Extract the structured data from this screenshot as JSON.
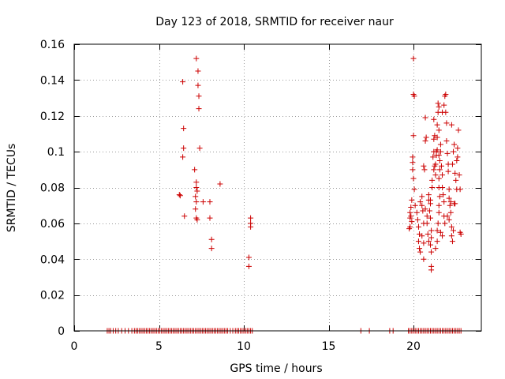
{
  "chart_data": {
    "type": "scatter",
    "title": "Day 123 of 2018, SRMTID for receiver naur",
    "xlabel": "GPS time / hours",
    "ylabel": "SRMTID / TECUs",
    "xlim": [
      0,
      24
    ],
    "ylim": [
      0,
      0.16
    ],
    "xticks": [
      0,
      5,
      10,
      15,
      20
    ],
    "xtick_labels": [
      "0",
      "5",
      "10",
      "15",
      "20"
    ],
    "yticks": [
      0,
      0.02,
      0.04,
      0.06,
      0.08,
      0.1,
      0.12,
      0.14,
      0.16
    ],
    "ytick_labels": [
      "0",
      "0.02",
      "0.04",
      "0.06",
      "0.08",
      "0.1",
      "0.12",
      "0.14",
      "0.16"
    ],
    "grid": true,
    "legend": "none",
    "marker": "plus",
    "color": "#cc0000",
    "series": [
      {
        "name": "SRMTID",
        "points": [
          [
            6.2,
            0.076
          ],
          [
            6.25,
            0.0755
          ],
          [
            6.4,
            0.139
          ],
          [
            6.45,
            0.113
          ],
          [
            6.45,
            0.102
          ],
          [
            6.4,
            0.097
          ],
          [
            6.5,
            0.064
          ],
          [
            7.2,
            0.152
          ],
          [
            7.3,
            0.145
          ],
          [
            7.3,
            0.137
          ],
          [
            7.35,
            0.131
          ],
          [
            7.35,
            0.124
          ],
          [
            7.4,
            0.102
          ],
          [
            7.1,
            0.09
          ],
          [
            7.2,
            0.083
          ],
          [
            7.2,
            0.08
          ],
          [
            7.25,
            0.078
          ],
          [
            7.15,
            0.075
          ],
          [
            7.2,
            0.072
          ],
          [
            7.15,
            0.068
          ],
          [
            7.2,
            0.063
          ],
          [
            7.25,
            0.062
          ],
          [
            7.6,
            0.072
          ],
          [
            8.0,
            0.072
          ],
          [
            8.0,
            0.063
          ],
          [
            8.1,
            0.051
          ],
          [
            8.1,
            0.046
          ],
          [
            8.6,
            0.082
          ],
          [
            10.3,
            0.041
          ],
          [
            10.3,
            0.036
          ],
          [
            10.4,
            0.063
          ],
          [
            10.4,
            0.06
          ],
          [
            10.4,
            0.058
          ],
          [
            20.0,
            0.152
          ],
          [
            20.0,
            0.132
          ],
          [
            20.05,
            0.131
          ],
          [
            20.0,
            0.109
          ],
          [
            19.95,
            0.097
          ],
          [
            19.95,
            0.094
          ],
          [
            19.95,
            0.09
          ],
          [
            20.0,
            0.085
          ],
          [
            20.05,
            0.079
          ],
          [
            19.9,
            0.073
          ],
          [
            19.85,
            0.069
          ],
          [
            19.8,
            0.066
          ],
          [
            19.85,
            0.064
          ],
          [
            19.8,
            0.063
          ],
          [
            19.9,
            0.061
          ],
          [
            19.8,
            0.058
          ],
          [
            19.75,
            0.057
          ],
          [
            20.1,
            0.07
          ],
          [
            20.2,
            0.066
          ],
          [
            20.25,
            0.062
          ],
          [
            20.3,
            0.058
          ],
          [
            20.35,
            0.054
          ],
          [
            20.3,
            0.05
          ],
          [
            20.35,
            0.046
          ],
          [
            20.4,
            0.044
          ],
          [
            20.4,
            0.072
          ],
          [
            20.5,
            0.07
          ],
          [
            20.5,
            0.075
          ],
          [
            20.55,
            0.067
          ],
          [
            20.6,
            0.06
          ],
          [
            20.5,
            0.053
          ],
          [
            20.6,
            0.049
          ],
          [
            20.6,
            0.04
          ],
          [
            20.7,
            0.119
          ],
          [
            20.7,
            0.106
          ],
          [
            20.75,
            0.108
          ],
          [
            20.6,
            0.092
          ],
          [
            20.65,
            0.09
          ],
          [
            20.7,
            0.068
          ],
          [
            20.8,
            0.064
          ],
          [
            20.8,
            0.06
          ],
          [
            20.85,
            0.054
          ],
          [
            20.9,
            0.05
          ],
          [
            20.9,
            0.073
          ],
          [
            20.95,
            0.067
          ],
          [
            21.0,
            0.073
          ],
          [
            21.0,
            0.063
          ],
          [
            21.05,
            0.056
          ],
          [
            21.05,
            0.052
          ],
          [
            21.0,
            0.048
          ],
          [
            21.05,
            0.044
          ],
          [
            21.05,
            0.036
          ],
          [
            21.05,
            0.034
          ],
          [
            21.1,
            0.084
          ],
          [
            21.1,
            0.08
          ],
          [
            21.15,
            0.097
          ],
          [
            21.2,
            0.1
          ],
          [
            21.2,
            0.107
          ],
          [
            21.25,
            0.109
          ],
          [
            21.2,
            0.118
          ],
          [
            21.2,
            0.09
          ],
          [
            21.25,
            0.092
          ],
          [
            21.3,
            0.087
          ],
          [
            21.3,
            0.093
          ],
          [
            21.35,
            0.098
          ],
          [
            21.35,
            0.1
          ],
          [
            21.4,
            0.101
          ],
          [
            21.4,
            0.108
          ],
          [
            21.4,
            0.115
          ],
          [
            21.45,
            0.122
          ],
          [
            21.45,
            0.127
          ],
          [
            21.5,
            0.125
          ],
          [
            21.5,
            0.112
          ],
          [
            21.5,
            0.098
          ],
          [
            21.55,
            0.095
          ],
          [
            21.55,
            0.09
          ],
          [
            21.5,
            0.085
          ],
          [
            21.5,
            0.08
          ],
          [
            21.55,
            0.075
          ],
          [
            21.5,
            0.07
          ],
          [
            21.5,
            0.066
          ],
          [
            21.45,
            0.06
          ],
          [
            21.4,
            0.056
          ],
          [
            21.4,
            0.05
          ],
          [
            21.3,
            0.046
          ],
          [
            21.6,
            0.104
          ],
          [
            21.6,
            0.1
          ],
          [
            21.65,
            0.092
          ],
          [
            21.7,
            0.087
          ],
          [
            21.7,
            0.08
          ],
          [
            21.75,
            0.076
          ],
          [
            21.8,
            0.072
          ],
          [
            21.8,
            0.064
          ],
          [
            21.85,
            0.06
          ],
          [
            21.7,
            0.122
          ],
          [
            21.8,
            0.126
          ],
          [
            21.85,
            0.131
          ],
          [
            21.9,
            0.132
          ],
          [
            21.9,
            0.122
          ],
          [
            21.95,
            0.116
          ],
          [
            21.95,
            0.106
          ],
          [
            22.0,
            0.099
          ],
          [
            22.05,
            0.093
          ],
          [
            22.05,
            0.089
          ],
          [
            22.1,
            0.079
          ],
          [
            22.1,
            0.074
          ],
          [
            22.15,
            0.07
          ],
          [
            22.2,
            0.072
          ],
          [
            22.2,
            0.066
          ],
          [
            22.25,
            0.058
          ],
          [
            22.25,
            0.053
          ],
          [
            22.3,
            0.05
          ],
          [
            22.35,
            0.056
          ],
          [
            22.35,
            0.1
          ],
          [
            22.4,
            0.104
          ],
          [
            22.4,
            0.071
          ],
          [
            22.45,
            0.071
          ],
          [
            22.45,
            0.088
          ],
          [
            22.5,
            0.084
          ],
          [
            22.55,
            0.079
          ],
          [
            22.55,
            0.095
          ],
          [
            22.6,
            0.097
          ],
          [
            22.6,
            0.102
          ],
          [
            22.65,
            0.112
          ],
          [
            22.7,
            0.087
          ],
          [
            22.75,
            0.079
          ],
          [
            22.75,
            0.055
          ],
          [
            22.8,
            0.054
          ],
          [
            22.25,
            0.115
          ],
          [
            22.3,
            0.093
          ],
          [
            21.0,
            0.071
          ],
          [
            20.9,
            0.076
          ],
          [
            21.6,
            0.055
          ],
          [
            21.7,
            0.053
          ],
          [
            22.0,
            0.064
          ],
          [
            22.1,
            0.062
          ],
          [
            1.95,
            0
          ],
          [
            2.05,
            0
          ],
          [
            2.15,
            0
          ],
          [
            2.3,
            0
          ],
          [
            2.45,
            0
          ],
          [
            2.6,
            0
          ],
          [
            2.8,
            0
          ],
          [
            3.0,
            0
          ],
          [
            3.2,
            0
          ],
          [
            3.4,
            0
          ],
          [
            3.55,
            0
          ],
          [
            3.65,
            0
          ],
          [
            3.75,
            0
          ],
          [
            3.85,
            0
          ],
          [
            3.95,
            0
          ],
          [
            4.05,
            0
          ],
          [
            4.15,
            0
          ],
          [
            4.25,
            0
          ],
          [
            4.35,
            0
          ],
          [
            4.45,
            0
          ],
          [
            4.55,
            0
          ],
          [
            4.65,
            0
          ],
          [
            4.75,
            0
          ],
          [
            4.85,
            0
          ],
          [
            4.95,
            0
          ],
          [
            5.05,
            0
          ],
          [
            5.15,
            0
          ],
          [
            5.25,
            0
          ],
          [
            5.35,
            0
          ],
          [
            5.45,
            0
          ],
          [
            5.55,
            0
          ],
          [
            5.65,
            0
          ],
          [
            5.75,
            0
          ],
          [
            5.85,
            0
          ],
          [
            5.95,
            0
          ],
          [
            6.05,
            0
          ],
          [
            6.15,
            0
          ],
          [
            6.25,
            0
          ],
          [
            6.35,
            0
          ],
          [
            6.45,
            0
          ],
          [
            6.55,
            0
          ],
          [
            6.65,
            0
          ],
          [
            6.75,
            0
          ],
          [
            6.85,
            0
          ],
          [
            6.95,
            0
          ],
          [
            7.05,
            0
          ],
          [
            7.15,
            0
          ],
          [
            7.25,
            0
          ],
          [
            7.35,
            0
          ],
          [
            7.45,
            0
          ],
          [
            7.55,
            0
          ],
          [
            7.65,
            0
          ],
          [
            7.75,
            0
          ],
          [
            7.85,
            0
          ],
          [
            7.95,
            0
          ],
          [
            8.05,
            0
          ],
          [
            8.15,
            0
          ],
          [
            8.25,
            0
          ],
          [
            8.35,
            0
          ],
          [
            8.45,
            0
          ],
          [
            8.55,
            0
          ],
          [
            8.65,
            0
          ],
          [
            8.75,
            0
          ],
          [
            8.85,
            0
          ],
          [
            8.95,
            0
          ],
          [
            9.05,
            0
          ],
          [
            9.2,
            0
          ],
          [
            9.35,
            0
          ],
          [
            9.5,
            0
          ],
          [
            9.6,
            0
          ],
          [
            9.7,
            0
          ],
          [
            9.8,
            0
          ],
          [
            9.9,
            0
          ],
          [
            10.0,
            0
          ],
          [
            10.1,
            0
          ],
          [
            10.2,
            0
          ],
          [
            10.3,
            0
          ],
          [
            10.4,
            0
          ],
          [
            10.5,
            0
          ],
          [
            16.9,
            0
          ],
          [
            17.4,
            0
          ],
          [
            18.6,
            0
          ],
          [
            18.8,
            0
          ],
          [
            19.7,
            0
          ],
          [
            19.8,
            0
          ],
          [
            19.9,
            0
          ],
          [
            20.0,
            0
          ],
          [
            20.1,
            0
          ],
          [
            20.2,
            0
          ],
          [
            20.3,
            0
          ],
          [
            20.4,
            0
          ],
          [
            20.5,
            0
          ],
          [
            20.6,
            0
          ],
          [
            20.7,
            0
          ],
          [
            20.8,
            0
          ],
          [
            20.9,
            0
          ],
          [
            21.0,
            0
          ],
          [
            21.1,
            0
          ],
          [
            21.2,
            0
          ],
          [
            21.3,
            0
          ],
          [
            21.4,
            0
          ],
          [
            21.5,
            0
          ],
          [
            21.6,
            0
          ],
          [
            21.7,
            0
          ],
          [
            21.8,
            0
          ],
          [
            21.9,
            0
          ],
          [
            22.0,
            0
          ],
          [
            22.1,
            0
          ],
          [
            22.2,
            0
          ],
          [
            22.3,
            0
          ],
          [
            22.4,
            0
          ],
          [
            22.5,
            0
          ],
          [
            22.6,
            0
          ],
          [
            22.7,
            0
          ],
          [
            22.8,
            0
          ]
        ]
      }
    ]
  }
}
